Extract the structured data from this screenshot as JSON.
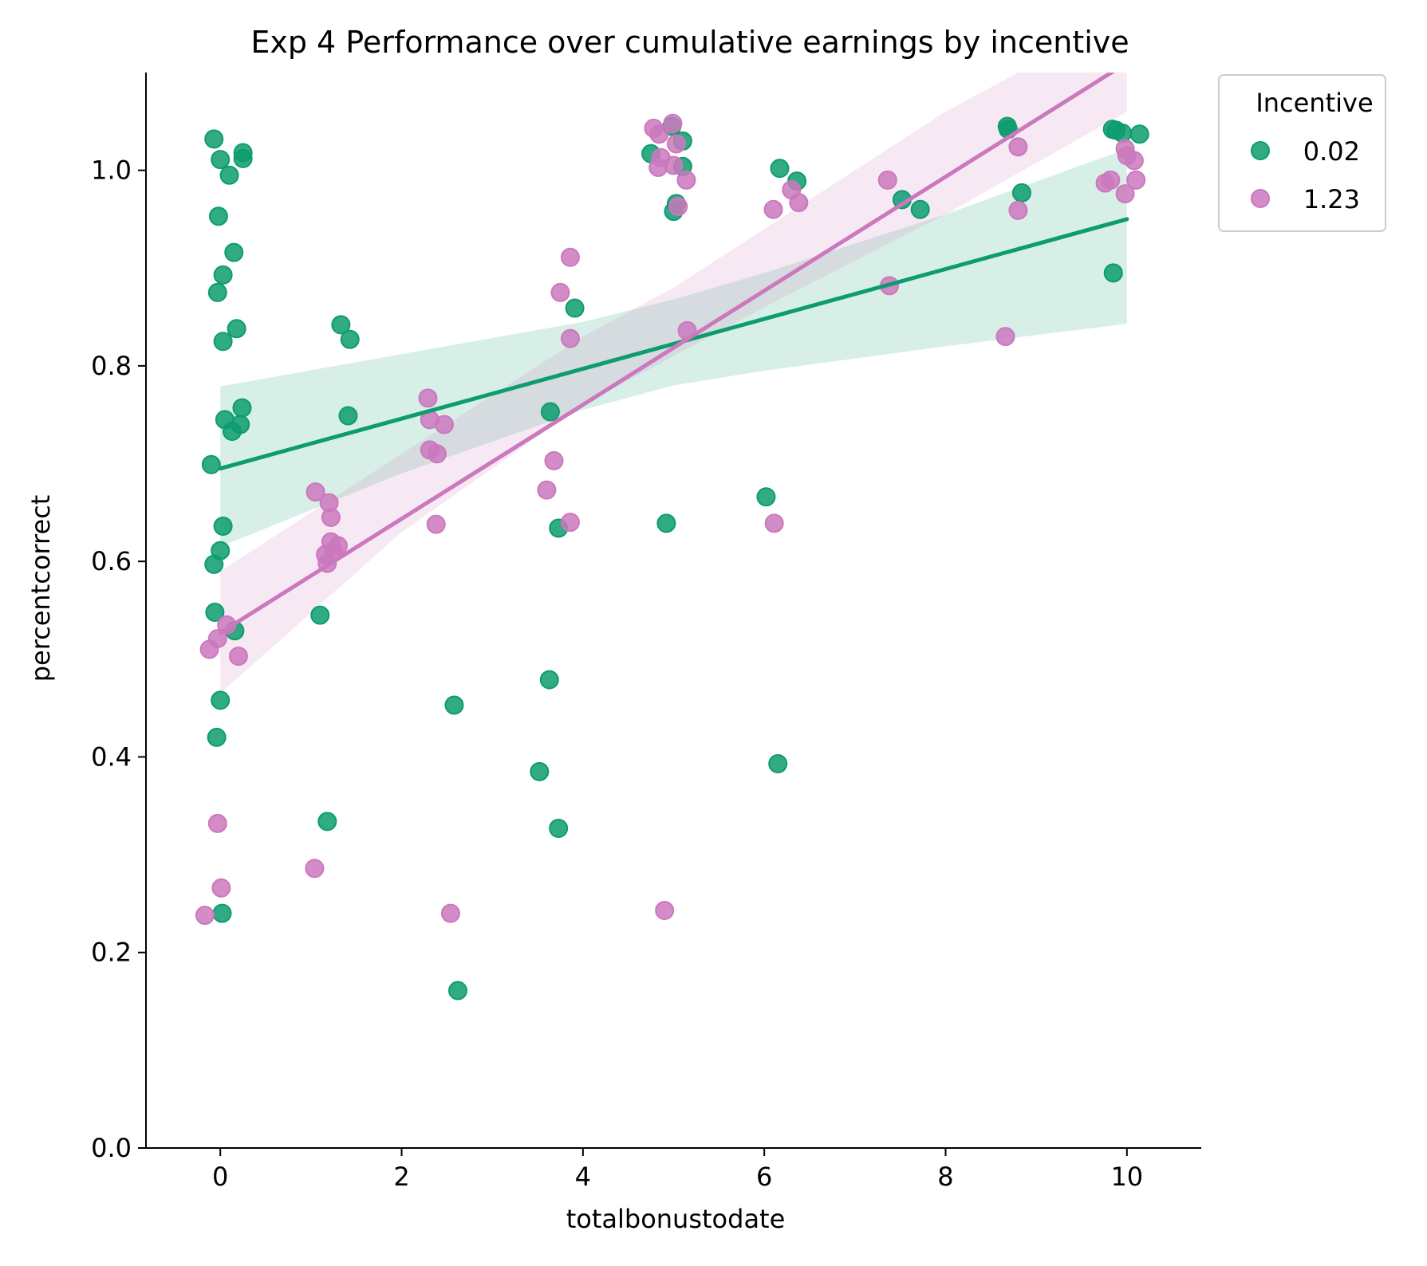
{
  "chart_data": {
    "type": "scatter",
    "title": "Exp 4 Performance over cumulative earnings by incentive",
    "xlabel": "totalbonustodate",
    "ylabel": "percentcorrect",
    "xlim": [
      -0.82,
      10.82
    ],
    "ylim": [
      0.0,
      1.1
    ],
    "xticks": [
      0,
      2,
      4,
      6,
      8,
      10
    ],
    "xtick_labels": [
      "0",
      "2",
      "4",
      "6",
      "8",
      "10"
    ],
    "yticks": [
      0.0,
      0.2,
      0.4,
      0.6,
      0.8,
      1.0
    ],
    "ytick_labels": [
      "0.0",
      "0.2",
      "0.4",
      "0.6",
      "0.8",
      "1.0"
    ],
    "grid": false,
    "legend": {
      "title": "Incentive",
      "placement": "outside-top-right"
    },
    "series": [
      {
        "name": "0.02",
        "color": "#0d9c6f",
        "fit": {
          "x": [
            0,
            10
          ],
          "y": [
            0.695,
            0.95
          ]
        },
        "ci": {
          "x": [
            0,
            2,
            4,
            5,
            6,
            8,
            10
          ],
          "lower": [
            0.615,
            0.69,
            0.755,
            0.78,
            0.795,
            0.82,
            0.843
          ],
          "upper": [
            0.779,
            0.812,
            0.845,
            0.868,
            0.895,
            0.955,
            1.022
          ]
        },
        "points": [
          [
            -0.07,
            1.032
          ],
          [
            0.0,
            1.011
          ],
          [
            0.1,
            0.995
          ],
          [
            0.25,
            1.018
          ],
          [
            0.25,
            1.012
          ],
          [
            -0.02,
            0.953
          ],
          [
            0.15,
            0.916
          ],
          [
            0.03,
            0.893
          ],
          [
            -0.03,
            0.875
          ],
          [
            0.18,
            0.838
          ],
          [
            0.03,
            0.825
          ],
          [
            0.24,
            0.757
          ],
          [
            0.05,
            0.745
          ],
          [
            0.22,
            0.74
          ],
          [
            0.13,
            0.733
          ],
          [
            -0.1,
            0.699
          ],
          [
            0.03,
            0.636
          ],
          [
            0.0,
            0.611
          ],
          [
            -0.07,
            0.597
          ],
          [
            -0.06,
            0.548
          ],
          [
            0.16,
            0.529
          ],
          [
            0.0,
            0.458
          ],
          [
            -0.04,
            0.42
          ],
          [
            0.02,
            0.24
          ],
          [
            1.33,
            0.842
          ],
          [
            1.43,
            0.827
          ],
          [
            1.41,
            0.749
          ],
          [
            1.1,
            0.545
          ],
          [
            1.18,
            0.334
          ],
          [
            2.58,
            0.453
          ],
          [
            2.62,
            0.161
          ],
          [
            3.91,
            0.859
          ],
          [
            3.64,
            0.753
          ],
          [
            3.73,
            0.634
          ],
          [
            3.63,
            0.479
          ],
          [
            3.52,
            0.385
          ],
          [
            3.73,
            0.327
          ],
          [
            4.98,
            1.045
          ],
          [
            4.75,
            1.017
          ],
          [
            5.1,
            1.03
          ],
          [
            5.1,
            1.004
          ],
          [
            5.03,
            0.966
          ],
          [
            5.0,
            0.958
          ],
          [
            4.92,
            0.639
          ],
          [
            6.17,
            1.002
          ],
          [
            6.36,
            0.989
          ],
          [
            6.02,
            0.666
          ],
          [
            6.15,
            0.393
          ],
          [
            7.52,
            0.97
          ],
          [
            7.72,
            0.96
          ],
          [
            8.68,
            1.045
          ],
          [
            8.69,
            1.042
          ],
          [
            8.84,
            0.977
          ],
          [
            9.84,
            1.042
          ],
          [
            9.88,
            1.041
          ],
          [
            9.95,
            1.038
          ],
          [
            10.14,
            1.037
          ],
          [
            9.85,
            0.895
          ]
        ]
      },
      {
        "name": "1.23",
        "color": "#cb78bd",
        "fit": {
          "x": [
            0,
            10
          ],
          "y": [
            0.527,
            1.11
          ]
        },
        "ci": {
          "x": [
            0,
            2,
            4,
            5,
            6,
            8,
            10
          ],
          "lower": [
            0.465,
            0.63,
            0.76,
            0.81,
            0.86,
            0.955,
            1.06
          ],
          "upper": [
            0.59,
            0.71,
            0.83,
            0.88,
            0.94,
            1.06,
            1.16
          ]
        },
        "points": [
          [
            -0.12,
            0.51
          ],
          [
            -0.03,
            0.521
          ],
          [
            0.07,
            0.535
          ],
          [
            0.2,
            0.503
          ],
          [
            -0.03,
            0.332
          ],
          [
            0.01,
            0.266
          ],
          [
            -0.17,
            0.238
          ],
          [
            1.05,
            0.671
          ],
          [
            1.2,
            0.66
          ],
          [
            1.22,
            0.645
          ],
          [
            1.22,
            0.62
          ],
          [
            1.3,
            0.616
          ],
          [
            1.16,
            0.607
          ],
          [
            1.25,
            0.61
          ],
          [
            1.18,
            0.598
          ],
          [
            1.04,
            0.286
          ],
          [
            2.29,
            0.767
          ],
          [
            2.31,
            0.745
          ],
          [
            2.47,
            0.74
          ],
          [
            2.31,
            0.714
          ],
          [
            2.39,
            0.71
          ],
          [
            2.38,
            0.638
          ],
          [
            2.54,
            0.24
          ],
          [
            3.86,
            0.911
          ],
          [
            3.75,
            0.875
          ],
          [
            3.86,
            0.828
          ],
          [
            3.68,
            0.703
          ],
          [
            3.6,
            0.673
          ],
          [
            3.86,
            0.64
          ],
          [
            4.78,
            1.043
          ],
          [
            4.99,
            1.048
          ],
          [
            4.84,
            1.037
          ],
          [
            5.03,
            1.027
          ],
          [
            4.86,
            1.013
          ],
          [
            4.83,
            1.003
          ],
          [
            5.0,
            1.005
          ],
          [
            5.05,
            0.963
          ],
          [
            5.14,
            0.99
          ],
          [
            5.15,
            0.836
          ],
          [
            4.9,
            0.243
          ],
          [
            6.3,
            0.98
          ],
          [
            6.38,
            0.967
          ],
          [
            6.1,
            0.96
          ],
          [
            6.11,
            0.639
          ],
          [
            7.36,
            0.99
          ],
          [
            7.38,
            0.882
          ],
          [
            8.8,
            1.024
          ],
          [
            8.8,
            0.959
          ],
          [
            8.66,
            0.83
          ],
          [
            9.76,
            0.987
          ],
          [
            9.82,
            0.99
          ],
          [
            9.98,
            1.022
          ],
          [
            10.0,
            1.015
          ],
          [
            10.08,
            1.01
          ],
          [
            10.1,
            0.99
          ],
          [
            9.98,
            0.976
          ]
        ]
      }
    ]
  }
}
